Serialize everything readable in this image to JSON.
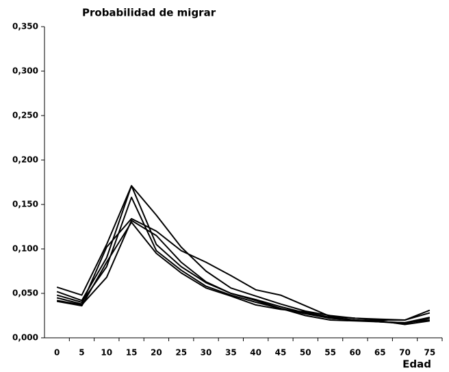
{
  "chart_data": {
    "type": "line",
    "title": "Probabilidad de migrar",
    "x_label": "Edad",
    "categories": [
      "0",
      "5",
      "10",
      "15",
      "20",
      "25",
      "30",
      "35",
      "40",
      "45",
      "50",
      "55",
      "60",
      "65",
      "70",
      "75"
    ],
    "ylim": [
      0,
      0.35
    ],
    "yticks": [
      {
        "value": 0,
        "label": "0,000"
      },
      {
        "value": 0.05,
        "label": "0,050"
      },
      {
        "value": 0.1,
        "label": "0,100"
      },
      {
        "value": 0.15,
        "label": "0,150"
      },
      {
        "value": 0.2,
        "label": "0,200"
      },
      {
        "value": 0.25,
        "label": "0,250"
      },
      {
        "value": 0.3,
        "label": "0,300"
      },
      {
        "value": 0.35,
        "label": "0,350"
      }
    ],
    "series": [
      {
        "color": "#000000",
        "values": [
          0.057,
          0.048,
          0.105,
          0.171,
          0.138,
          0.102,
          0.075,
          0.056,
          0.047,
          0.038,
          0.03,
          0.025,
          0.022,
          0.02,
          0.02,
          0.028
        ]
      },
      {
        "color": "#000000",
        "values": [
          0.052,
          0.042,
          0.09,
          0.171,
          0.105,
          0.08,
          0.062,
          0.05,
          0.043,
          0.035,
          0.028,
          0.022,
          0.02,
          0.018,
          0.016,
          0.022
        ]
      },
      {
        "color": "#000000",
        "values": [
          0.048,
          0.04,
          0.08,
          0.158,
          0.098,
          0.076,
          0.058,
          0.048,
          0.04,
          0.033,
          0.027,
          0.022,
          0.02,
          0.018,
          0.017,
          0.02
        ]
      },
      {
        "color": "#000000",
        "values": [
          0.045,
          0.038,
          0.102,
          0.134,
          0.12,
          0.098,
          0.085,
          0.07,
          0.054,
          0.048,
          0.036,
          0.024,
          0.022,
          0.021,
          0.02,
          0.031
        ]
      },
      {
        "color": "#000000",
        "values": [
          0.042,
          0.037,
          0.068,
          0.132,
          0.115,
          0.085,
          0.063,
          0.05,
          0.042,
          0.033,
          0.025,
          0.02,
          0.019,
          0.018,
          0.017,
          0.023
        ]
      },
      {
        "color": "#000000",
        "values": [
          0.041,
          0.036,
          0.085,
          0.13,
          0.095,
          0.073,
          0.056,
          0.047,
          0.037,
          0.032,
          0.029,
          0.023,
          0.02,
          0.019,
          0.015,
          0.019
        ]
      }
    ]
  }
}
